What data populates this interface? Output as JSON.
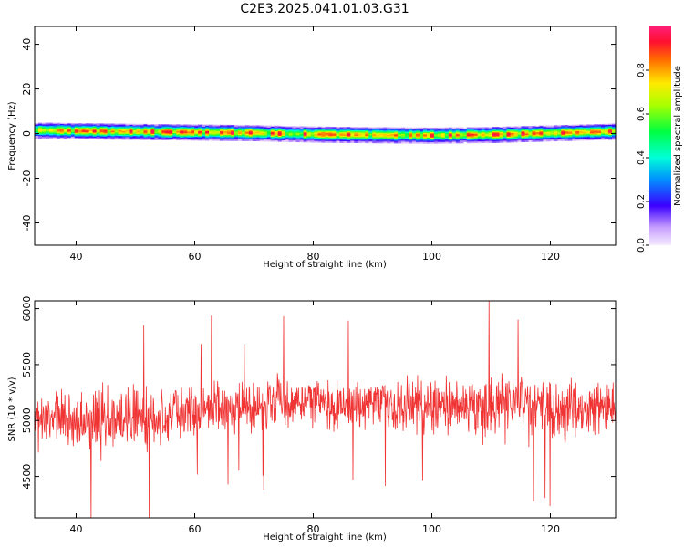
{
  "title": "C2E3.2025.041.01.03.G31",
  "chart_data": [
    {
      "type": "heatmap",
      "xlabel": "Height of straight line (km)",
      "ylabel": "Frequency (Hz)",
      "xlim": [
        33,
        131
      ],
      "ylim": [
        -50,
        48
      ],
      "xticks": [
        40,
        60,
        80,
        100,
        120
      ],
      "yticks": [
        40,
        20,
        0,
        -20,
        -40
      ],
      "band_center_hz": [
        [
          33,
          1.5
        ],
        [
          40,
          1.2
        ],
        [
          50,
          0.9
        ],
        [
          60,
          0.6
        ],
        [
          70,
          0.3
        ],
        [
          80,
          -0.3
        ],
        [
          90,
          -0.6
        ],
        [
          100,
          -0.8
        ],
        [
          110,
          -0.5
        ],
        [
          120,
          0.2
        ],
        [
          131,
          1.0
        ]
      ],
      "band_halfwidth_hz": 3.5,
      "colorbar": {
        "label": "Normalized spectral amplitude",
        "ticks": [
          0.0,
          0.2,
          0.4,
          0.6,
          0.8
        ],
        "range": [
          0.0,
          1.0
        ]
      }
    },
    {
      "type": "line",
      "xlabel": "Height of straight line (km)",
      "ylabel": "SNR (10 * v/v)",
      "xlim": [
        33,
        131
      ],
      "ylim": [
        4130,
        6070
      ],
      "xticks": [
        40,
        60,
        80,
        100,
        120
      ],
      "yticks": [
        6000,
        5500,
        5000,
        4500
      ],
      "color": "#f03434",
      "x": [
        33,
        38,
        43,
        48,
        53,
        58,
        63,
        68,
        73,
        78,
        83,
        88,
        93,
        98,
        103,
        108,
        113,
        118,
        123,
        128,
        131
      ],
      "y": [
        4980,
        5020,
        4950,
        5050,
        5000,
        5080,
        5100,
        5120,
        5150,
        5180,
        5150,
        5130,
        5120,
        5150,
        5120,
        5100,
        5160,
        5120,
        5080,
        5120,
        5130
      ],
      "spread": [
        350,
        380,
        420,
        400,
        380,
        360,
        340,
        330,
        320,
        300,
        310,
        330,
        340,
        350,
        360,
        370,
        420,
        400,
        380,
        360,
        350
      ]
    }
  ]
}
